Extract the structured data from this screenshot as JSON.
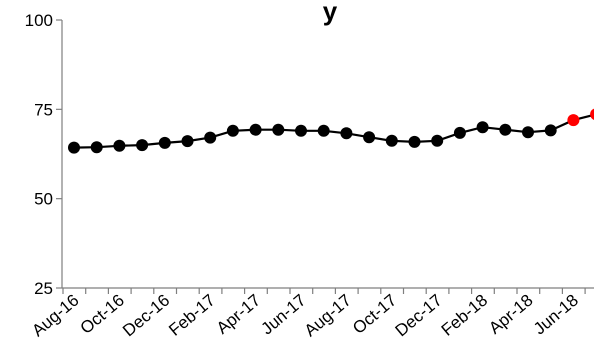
{
  "chart_data": {
    "type": "line",
    "title": "y",
    "x": [
      "Aug-16",
      "Sep-16",
      "Oct-16",
      "Nov-16",
      "Dec-16",
      "Jan-17",
      "Feb-17",
      "Mar-17",
      "Apr-17",
      "May-17",
      "Jun-17",
      "Jul-17",
      "Aug-17",
      "Sep-17",
      "Oct-17",
      "Nov-17",
      "Dec-17",
      "Jan-18",
      "Feb-18",
      "Mar-18",
      "Apr-18",
      "May-18",
      "Jun-18",
      "Jul-18"
    ],
    "x_tick_labels": [
      "Aug-16",
      "Oct-16",
      "Dec-16",
      "Feb-17",
      "Apr-17",
      "Jun-17",
      "Aug-17",
      "Oct-17",
      "Dec-17",
      "Feb-18",
      "Apr-18",
      "Jun-18"
    ],
    "series": [
      {
        "values": [
          64.3,
          64.4,
          64.8,
          65.0,
          65.6,
          66.1,
          67.1,
          69.0,
          69.3,
          69.3,
          69.0,
          69.0,
          68.3,
          67.2,
          66.2,
          65.9,
          66.2,
          68.4,
          70.0,
          69.3,
          68.6,
          69.1,
          72.0,
          73.6
        ],
        "highlight_from_index": 22
      }
    ],
    "yticks": [
      25,
      50,
      75,
      100
    ],
    "ylim": [
      25,
      100
    ],
    "grid": false,
    "colors": {
      "line": "#000000",
      "marker": "#000000",
      "highlight": "#ff0000",
      "axis": "#7f7f7f"
    }
  }
}
